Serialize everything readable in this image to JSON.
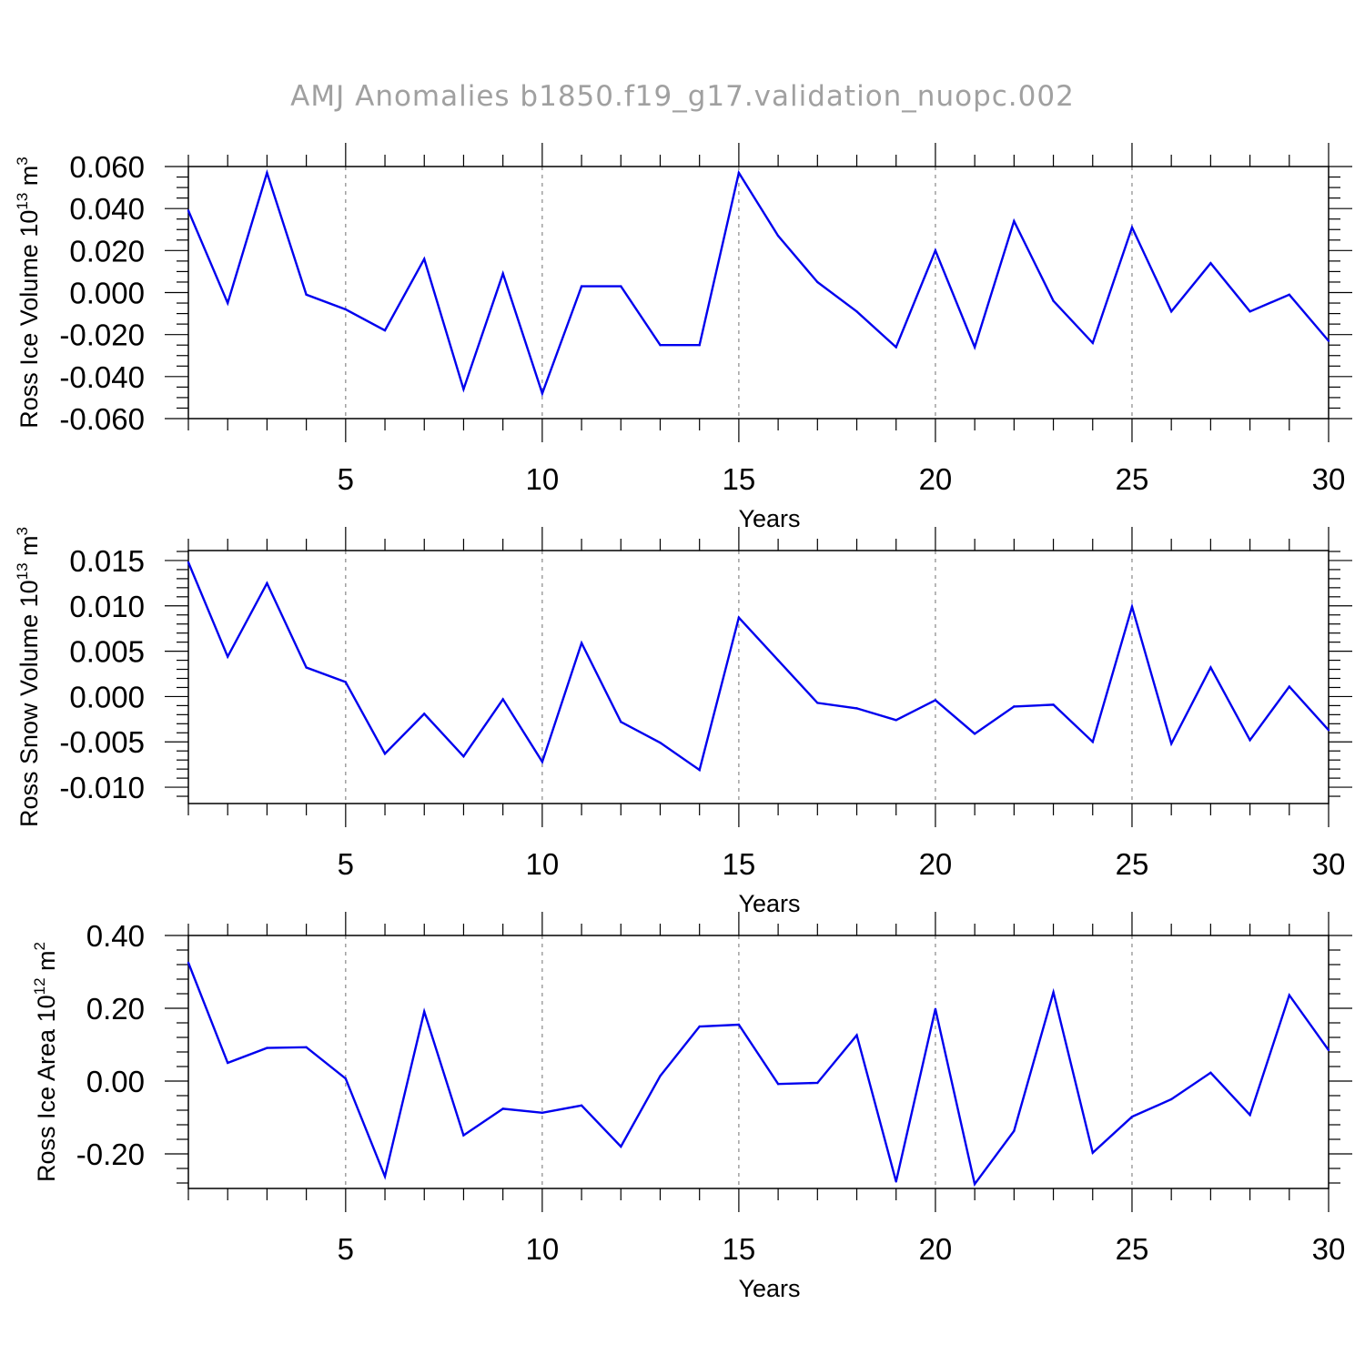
{
  "figure": {
    "title": "AMJ Anomalies b1850.f19_g17.validation_nuopc.002"
  },
  "colors": {
    "line": "#0000ee",
    "axis": "#000000",
    "grid": "#888888",
    "title": "#a0a0a0"
  },
  "chart_data": [
    {
      "type": "line",
      "ylabel_main": "Ross Ice Volume 10",
      "ylabel_sup": "13",
      "ylabel_unit": " m",
      "ylabel_unit_sup": "3",
      "xlabel": "Years",
      "xlim": [
        1,
        30
      ],
      "ylim": [
        -0.06,
        0.06
      ],
      "x_ticks": [
        5,
        10,
        15,
        20,
        25,
        30
      ],
      "y_ticks": [
        -0.06,
        -0.04,
        -0.02,
        0.0,
        0.02,
        0.04,
        0.06
      ],
      "y_tick_labels": [
        "-0.060",
        "-0.040",
        "-0.020",
        "0.000",
        "0.020",
        "0.040",
        "0.060"
      ],
      "y_minor_step": 0.005,
      "x": [
        1,
        2,
        3,
        4,
        5,
        6,
        7,
        8,
        9,
        10,
        11,
        12,
        13,
        14,
        15,
        16,
        17,
        18,
        19,
        20,
        21,
        22,
        23,
        24,
        25,
        26,
        27,
        28,
        29,
        30
      ],
      "values": [
        0.039,
        -0.005,
        0.057,
        -0.001,
        -0.008,
        -0.018,
        0.016,
        -0.046,
        0.009,
        -0.048,
        0.003,
        0.003,
        -0.025,
        -0.025,
        0.057,
        0.027,
        0.005,
        -0.009,
        -0.026,
        0.02,
        -0.026,
        0.034,
        -0.004,
        -0.024,
        0.031,
        -0.009,
        0.014,
        -0.009,
        -0.001,
        -0.023
      ]
    },
    {
      "type": "line",
      "ylabel_main": "Ross Snow Volume 10",
      "ylabel_sup": "13",
      "ylabel_unit": " m",
      "ylabel_unit_sup": "3",
      "xlabel": "Years",
      "xlim": [
        1,
        30
      ],
      "ylim": [
        -0.0118,
        0.0161
      ],
      "x_ticks": [
        5,
        10,
        15,
        20,
        25,
        30
      ],
      "y_ticks": [
        -0.01,
        -0.005,
        0.0,
        0.005,
        0.01,
        0.015
      ],
      "y_tick_labels": [
        "-0.010",
        "-0.005",
        "0.000",
        "0.005",
        "0.010",
        "0.015"
      ],
      "y_minor_step": 0.001,
      "x": [
        1,
        2,
        3,
        4,
        5,
        6,
        7,
        8,
        9,
        10,
        11,
        12,
        13,
        14,
        15,
        16,
        17,
        18,
        19,
        20,
        21,
        22,
        23,
        24,
        25,
        26,
        27,
        28,
        29,
        30
      ],
      "values": [
        0.0148,
        0.0044,
        0.0125,
        0.0032,
        0.0016,
        -0.0063,
        -0.0019,
        -0.0066,
        -0.0003,
        -0.0072,
        0.0059,
        -0.0028,
        -0.0051,
        -0.0081,
        0.0087,
        0.004,
        -0.0007,
        -0.0013,
        -0.0026,
        -0.0004,
        -0.0041,
        -0.0011,
        -0.0009,
        -0.005,
        0.0099,
        -0.0052,
        0.0032,
        -0.0048,
        0.0011,
        -0.0037
      ]
    },
    {
      "type": "line",
      "ylabel_main": "Ross Ice Area 10",
      "ylabel_sup": "12",
      "ylabel_unit": " m",
      "ylabel_unit_sup": "2",
      "xlabel": "Years",
      "xlim": [
        1,
        30
      ],
      "ylim": [
        -0.295,
        0.4
      ],
      "x_ticks": [
        5,
        10,
        15,
        20,
        25,
        30
      ],
      "y_ticks": [
        -0.2,
        0.0,
        0.2,
        0.4
      ],
      "y_tick_labels": [
        "-0.20",
        "0.00",
        "0.20",
        "0.40"
      ],
      "y_minor_step": 0.04,
      "x": [
        1,
        2,
        3,
        4,
        5,
        6,
        7,
        8,
        9,
        10,
        11,
        12,
        13,
        14,
        15,
        16,
        17,
        18,
        19,
        20,
        21,
        22,
        23,
        24,
        25,
        26,
        27,
        28,
        29,
        30
      ],
      "values": [
        0.325,
        0.05,
        0.091,
        0.093,
        0.007,
        -0.262,
        0.191,
        -0.149,
        -0.076,
        -0.087,
        -0.067,
        -0.18,
        0.014,
        0.15,
        0.155,
        -0.008,
        -0.005,
        0.126,
        -0.276,
        0.198,
        -0.283,
        -0.137,
        0.244,
        -0.197,
        -0.098,
        -0.05,
        0.023,
        -0.093,
        0.236,
        0.085
      ]
    }
  ]
}
